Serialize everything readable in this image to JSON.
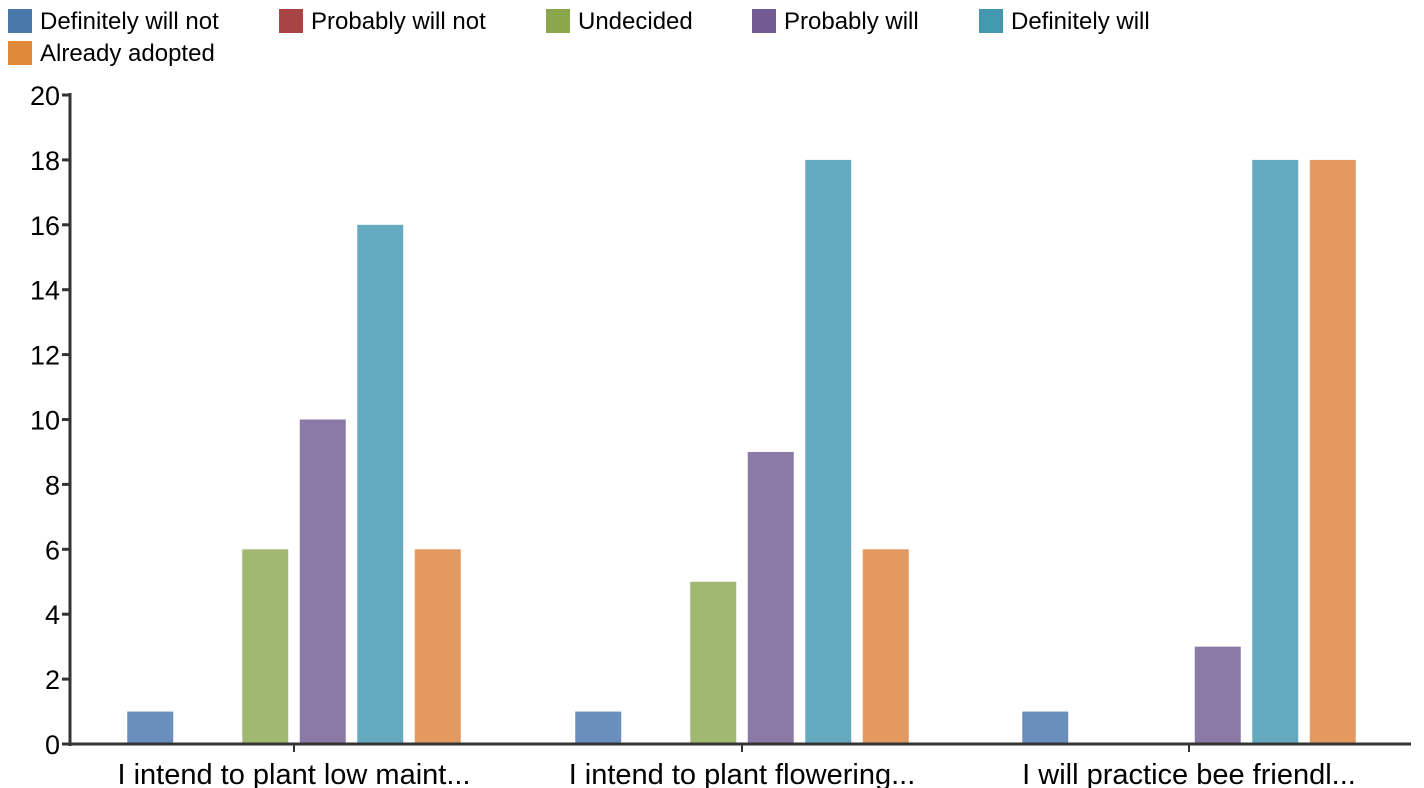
{
  "chart_data": {
    "type": "bar",
    "title": "",
    "xlabel": "",
    "ylabel": "",
    "ylim": [
      0,
      20
    ],
    "yticks": [
      0,
      2,
      4,
      6,
      8,
      10,
      12,
      14,
      16,
      18,
      20
    ],
    "grid": false,
    "legend_position": "top-left",
    "categories": [
      "I intend to plant low maint...",
      "I intend to plant flowering...",
      "I will practice bee friendl..."
    ],
    "series": [
      {
        "name": "Definitely will not",
        "color": "#4a77aa",
        "bar_color": "#6a8fbd",
        "values": [
          1,
          1,
          1
        ]
      },
      {
        "name": "Probably will not",
        "color": "#aa4444",
        "bar_color": "#bb5e5e",
        "values": [
          0,
          0,
          0
        ]
      },
      {
        "name": "Undecided",
        "color": "#8aa74e",
        "bar_color": "#a0b872",
        "values": [
          6,
          5,
          0
        ]
      },
      {
        "name": "Probably will",
        "color": "#725b92",
        "bar_color": "#8b79a6",
        "values": [
          10,
          9,
          3
        ]
      },
      {
        "name": "Definitely will",
        "color": "#4298ae",
        "bar_color": "#64abbf",
        "values": [
          16,
          18,
          18
        ]
      },
      {
        "name": "Already adopted",
        "color": "#e0893d",
        "bar_color": "#e3995f",
        "values": [
          6,
          6,
          18
        ]
      }
    ]
  }
}
